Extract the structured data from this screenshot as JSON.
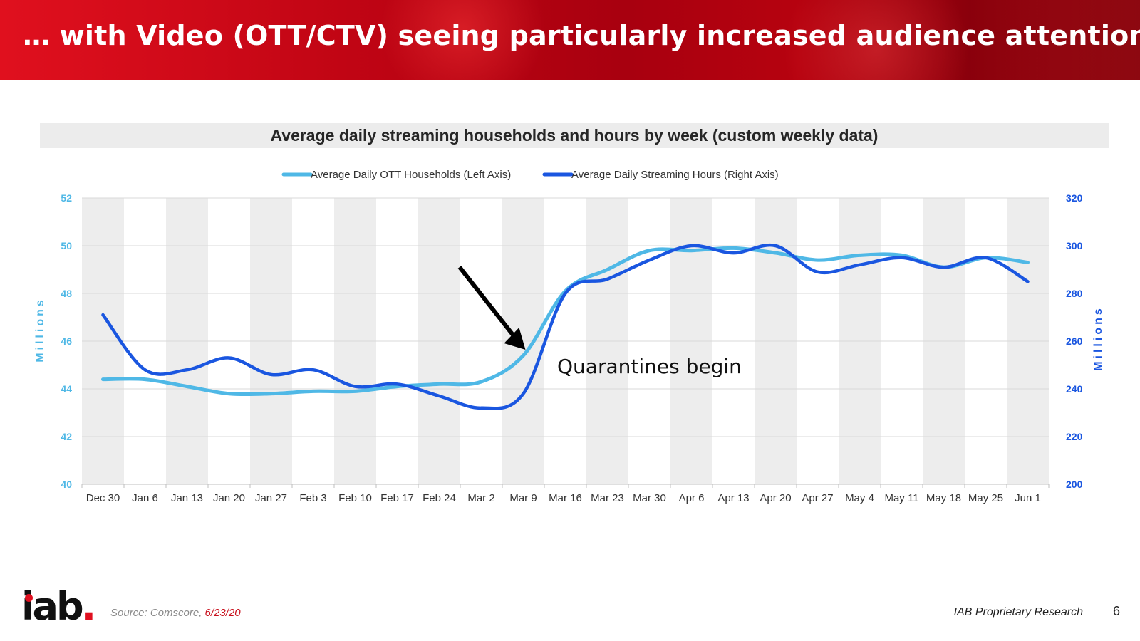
{
  "header": {
    "title": "… with Video (OTT/CTV) seeing particularly increased audience attention."
  },
  "footer": {
    "logo_text": "iab",
    "logo_dot": ".",
    "source_prefix": "Source: Comscore, ",
    "source_date": "6/23/20",
    "right_label": "IAB Proprietary Research",
    "page_number": "6"
  },
  "colors": {
    "header_red": "#c10514",
    "series_light": "#4fb8e6",
    "series_dark": "#1a56e0",
    "axis_left_text": "#4fb8e6",
    "axis_right_text": "#1a56e0",
    "band_gray": "#ededed",
    "gridline": "#d9d9d9",
    "arrow": "#000000"
  },
  "chart_data": {
    "type": "line",
    "title": "Average daily streaming households and hours by week (custom weekly data)",
    "categories": [
      "Dec 30",
      "Jan 6",
      "Jan 13",
      "Jan 20",
      "Jan 27",
      "Feb 3",
      "Feb 10",
      "Feb 17",
      "Feb 24",
      "Mar 2",
      "Mar 9",
      "Mar 16",
      "Mar 23",
      "Mar 30",
      "Apr 6",
      "Apr 13",
      "Apr 20",
      "Apr 27",
      "May 4",
      "May 11",
      "May 18",
      "May 25",
      "Jun 1"
    ],
    "series": [
      {
        "name": "Average Daily OTT Households (Left Axis)",
        "axis": "left",
        "values": [
          44.4,
          44.4,
          44.1,
          43.8,
          43.8,
          43.9,
          43.9,
          44.1,
          44.2,
          44.3,
          45.4,
          48.1,
          49.0,
          49.8,
          49.8,
          49.9,
          49.7,
          49.4,
          49.6,
          49.6,
          49.1,
          49.5,
          49.3
        ]
      },
      {
        "name": "Average Daily Streaming Hours (Right Axis)",
        "axis": "right",
        "values": [
          271,
          248,
          248,
          253,
          246,
          248,
          241,
          242,
          237,
          232,
          238,
          280,
          286,
          294,
          300,
          297,
          300,
          289,
          292,
          295,
          291,
          295,
          285
        ]
      }
    ],
    "y_left": {
      "label": "Millions",
      "ticks": [
        "52",
        "50",
        "48",
        "46",
        "44",
        "42",
        "40"
      ],
      "ylim": [
        40,
        52
      ]
    },
    "y_right": {
      "label": "Millions",
      "ticks": [
        "320",
        "300",
        "280",
        "260",
        "240",
        "220",
        "200"
      ],
      "ylim": [
        200,
        320
      ]
    },
    "annotation": {
      "text": "Quarantines begin",
      "points_to": "Mar 9"
    },
    "legend": "top-center",
    "grid": true
  }
}
